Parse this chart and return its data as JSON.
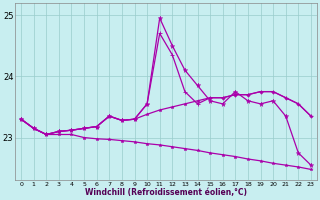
{
  "xlabel": "Windchill (Refroidissement éolien,°C)",
  "bg_color": "#c8eef0",
  "grid_color": "#99cccc",
  "line_color": "#aa00aa",
  "x": [
    0,
    1,
    2,
    3,
    4,
    5,
    6,
    7,
    8,
    9,
    10,
    11,
    12,
    13,
    14,
    15,
    16,
    17,
    18,
    19,
    20,
    21,
    22,
    23
  ],
  "series_spike": [
    23.3,
    23.15,
    23.05,
    23.1,
    23.12,
    23.15,
    23.18,
    23.35,
    23.28,
    23.3,
    23.55,
    24.95,
    24.5,
    24.1,
    23.85,
    23.6,
    23.55,
    23.75,
    23.6,
    23.55,
    23.6,
    23.35,
    22.75,
    22.55
  ],
  "series_upper": [
    23.3,
    23.15,
    23.05,
    23.1,
    23.12,
    23.15,
    23.18,
    23.35,
    23.28,
    23.3,
    23.55,
    24.7,
    24.35,
    23.75,
    23.55,
    23.65,
    23.65,
    23.7,
    23.7,
    23.75,
    23.75,
    23.65,
    23.55,
    23.35
  ],
  "series_mid": [
    23.3,
    23.15,
    23.05,
    23.1,
    23.12,
    23.15,
    23.18,
    23.35,
    23.28,
    23.3,
    23.38,
    23.45,
    23.5,
    23.55,
    23.6,
    23.65,
    23.65,
    23.7,
    23.7,
    23.75,
    23.75,
    23.65,
    23.55,
    23.35
  ],
  "series_down": [
    23.3,
    23.15,
    23.05,
    23.05,
    23.05,
    23.0,
    22.98,
    22.97,
    22.95,
    22.93,
    22.9,
    22.88,
    22.85,
    22.82,
    22.79,
    22.75,
    22.72,
    22.69,
    22.65,
    22.62,
    22.58,
    22.55,
    22.52,
    22.48
  ],
  "ylim": [
    22.3,
    25.2
  ],
  "xlim": [
    -0.5,
    23.5
  ],
  "yticks": [
    23,
    24,
    25
  ]
}
